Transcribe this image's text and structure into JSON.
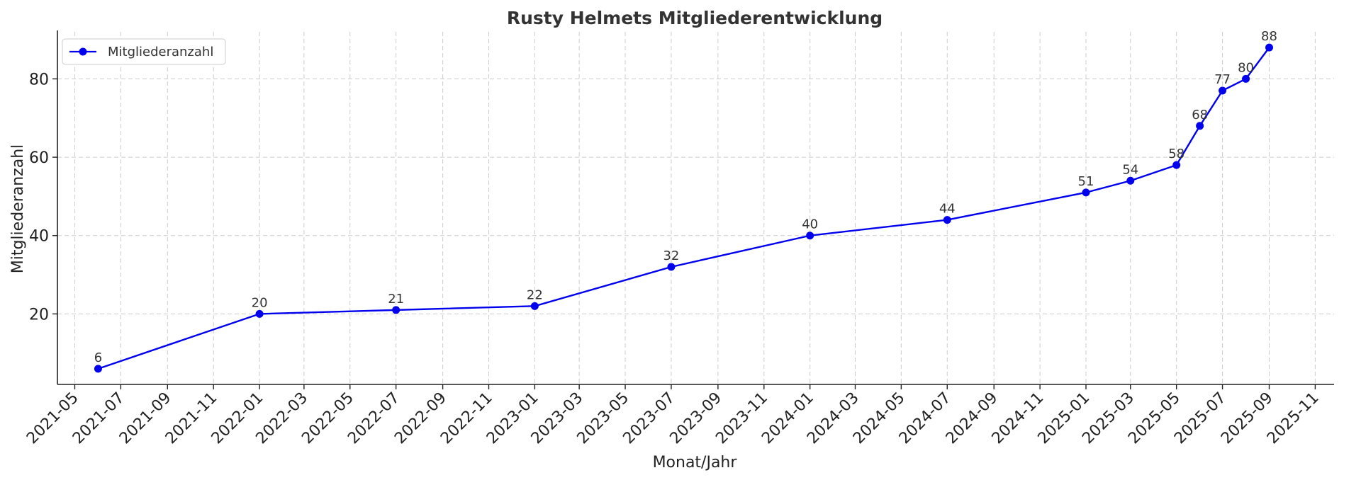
{
  "chart_data": {
    "type": "line",
    "title": "Rusty Helmets Mitgliederentwicklung",
    "xlabel": "Monat/Jahr",
    "ylabel": "Mitgliederanzahl",
    "x_ticks": [
      "2021-05",
      "2021-07",
      "2021-09",
      "2021-11",
      "2022-01",
      "2022-03",
      "2022-05",
      "2022-07",
      "2022-09",
      "2022-11",
      "2023-01",
      "2023-03",
      "2023-05",
      "2023-07",
      "2023-09",
      "2023-11",
      "2024-01",
      "2024-03",
      "2024-05",
      "2024-07",
      "2024-09",
      "2024-11",
      "2025-01",
      "2025-03",
      "2025-05",
      "2025-07",
      "2025-09",
      "2025-11"
    ],
    "y_ticks": [
      20,
      40,
      60,
      80
    ],
    "xlim": [
      "2021-04-08",
      "2025-11-26"
    ],
    "ylim": [
      2,
      92
    ],
    "grid": true,
    "legend_position": "top-left",
    "series": [
      {
        "name": "Mitgliederanzahl",
        "color": "#0000ee",
        "marker": "circle",
        "points": [
          {
            "x": "2021-06-01",
            "y": 6
          },
          {
            "x": "2022-01-01",
            "y": 20
          },
          {
            "x": "2022-07-01",
            "y": 21
          },
          {
            "x": "2023-01-01",
            "y": 22
          },
          {
            "x": "2023-07-01",
            "y": 32
          },
          {
            "x": "2024-01-01",
            "y": 40
          },
          {
            "x": "2024-07-01",
            "y": 44
          },
          {
            "x": "2025-01-01",
            "y": 51
          },
          {
            "x": "2025-03-01",
            "y": 54
          },
          {
            "x": "2025-05-01",
            "y": 58
          },
          {
            "x": "2025-06-01",
            "y": 68
          },
          {
            "x": "2025-07-01",
            "y": 77
          },
          {
            "x": "2025-08-01",
            "y": 80
          },
          {
            "x": "2025-09-01",
            "y": 88
          }
        ]
      }
    ]
  }
}
